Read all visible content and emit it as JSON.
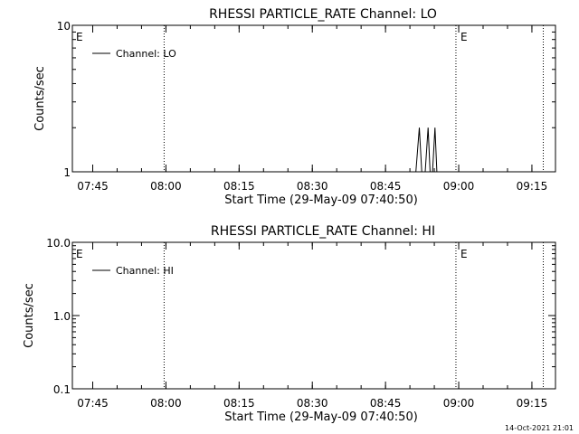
{
  "footer_timestamp": "14-Oct-2021 21:01",
  "chart_data": [
    {
      "type": "line",
      "title": "RHESSI PARTICLE_RATE Channel: LO",
      "xlabel": "Start Time (29-May-09 07:40:50)",
      "ylabel": "Counts/sec",
      "yscale": "log",
      "ylim": [
        1,
        10
      ],
      "y_tick_labels": [
        "1",
        "10"
      ],
      "xlim_minutes_after_start": [
        0,
        99
      ],
      "x_tick_labels": [
        "07:45",
        "08:00",
        "08:15",
        "08:30",
        "08:45",
        "09:00",
        "09:15"
      ],
      "x_tick_minutes_after_start": [
        4.17,
        19.17,
        34.17,
        49.17,
        64.17,
        79.17,
        94.17
      ],
      "event_lines_minutes_after_start": [
        18.8,
        78.6,
        96.5
      ],
      "event_markers": [
        {
          "label": "E",
          "at_minutes": 0
        },
        {
          "label": "E",
          "at_minutes": 78.6
        }
      ],
      "legend": {
        "entry": "Channel: LO",
        "placement": "top-left"
      },
      "series": [
        {
          "name": "Channel: LO",
          "color": "#000000",
          "points": [
            [
              70.4,
              1
            ],
            [
              71.1,
              2
            ],
            [
              71.6,
              1
            ],
            [
              72.3,
              1
            ],
            [
              72.9,
              2
            ],
            [
              73.3,
              1
            ],
            [
              73.8,
              1
            ],
            [
              74.3,
              2
            ],
            [
              74.7,
              1
            ]
          ]
        }
      ]
    },
    {
      "type": "line",
      "title": "RHESSI PARTICLE_RATE Channel: HI",
      "xlabel": "Start Time (29-May-09 07:40:50)",
      "ylabel": "Counts/sec",
      "yscale": "log",
      "ylim": [
        0.1,
        10
      ],
      "y_tick_labels": [
        "0.1",
        "1.0",
        "10.0"
      ],
      "xlim_minutes_after_start": [
        0,
        99
      ],
      "x_tick_labels": [
        "07:45",
        "08:00",
        "08:15",
        "08:30",
        "08:45",
        "09:00",
        "09:15"
      ],
      "x_tick_minutes_after_start": [
        4.17,
        19.17,
        34.17,
        49.17,
        64.17,
        79.17,
        94.17
      ],
      "event_lines_minutes_after_start": [
        18.8,
        78.6,
        96.5
      ],
      "event_markers": [
        {
          "label": "E",
          "at_minutes": 0
        },
        {
          "label": "E",
          "at_minutes": 78.6
        }
      ],
      "legend": {
        "entry": "Channel: HI",
        "placement": "top-left"
      },
      "series": [
        {
          "name": "Channel: HI",
          "color": "#000000",
          "points": []
        }
      ]
    }
  ]
}
